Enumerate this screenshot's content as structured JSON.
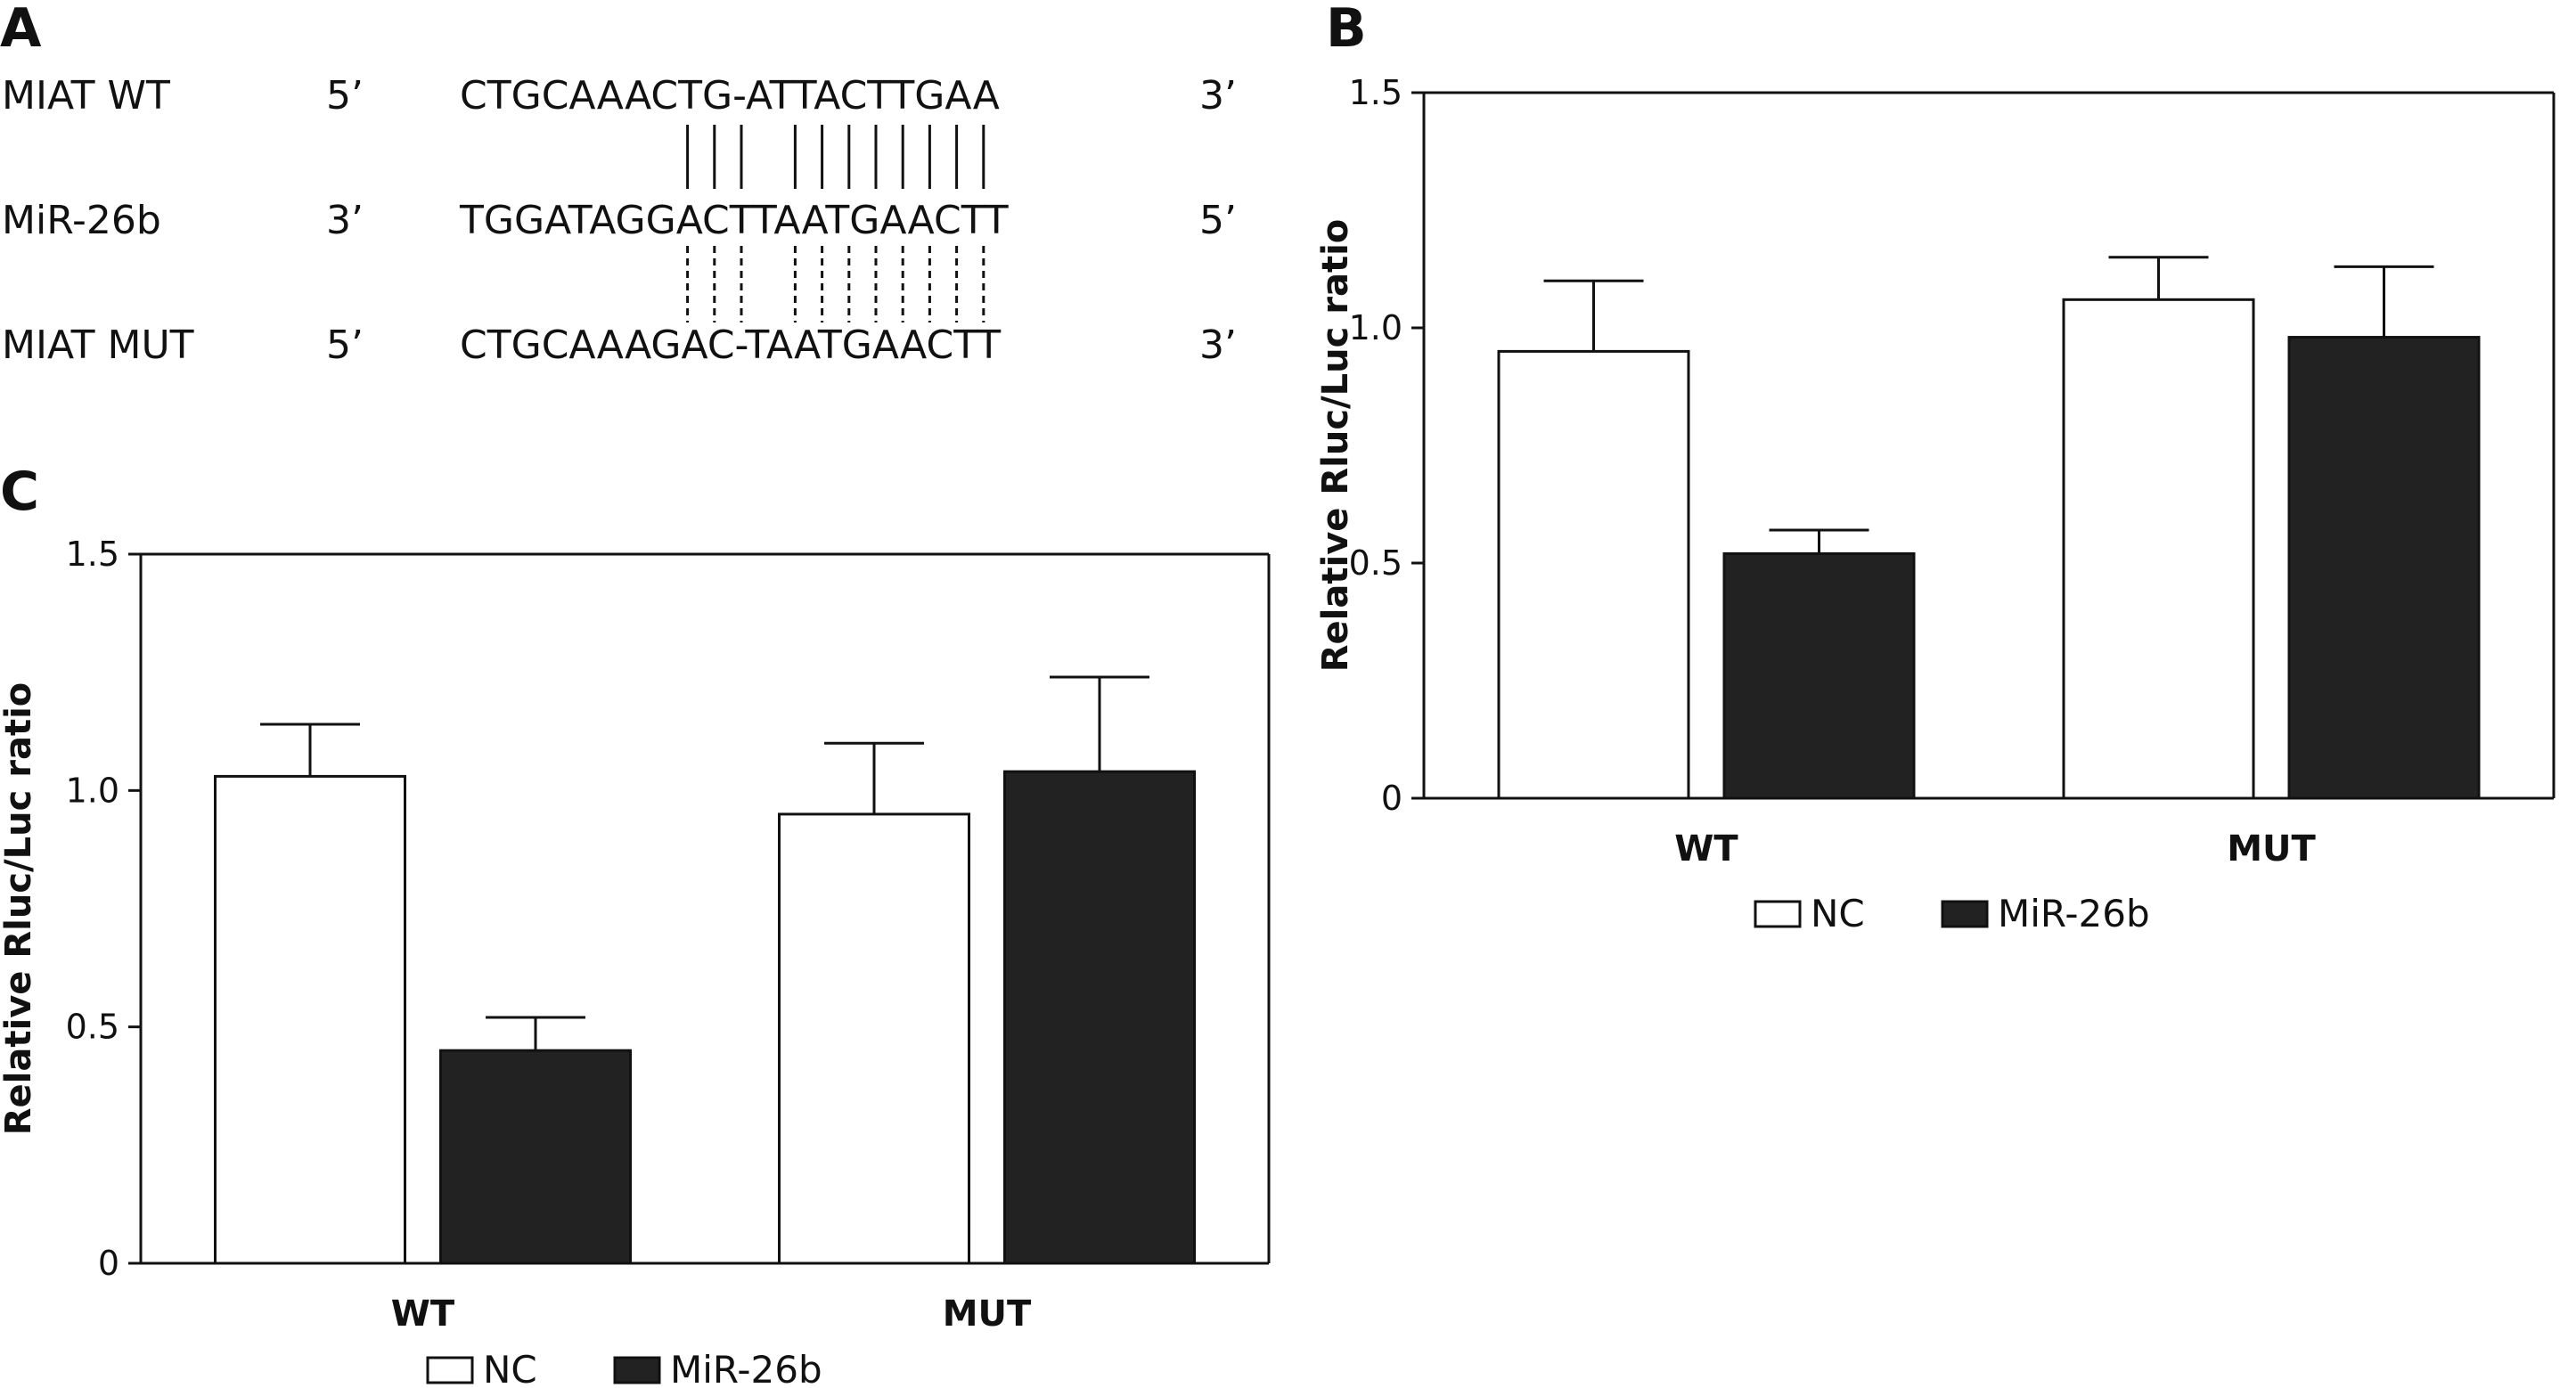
{
  "panels": {
    "a": {
      "letter": "A",
      "rows": [
        {
          "name": "MIAT WT",
          "left_end": "5’",
          "sequence": "CTGCAAACTG-ATTACTTGAA",
          "right_end": "3’"
        },
        {
          "name": "MiR-26b",
          "left_end": "3’",
          "sequence": "TGGATAGGACTTAATGAACTT",
          "right_end": "5’"
        },
        {
          "name": "MIAT MUT",
          "left_end": "5’",
          "sequence": "CTGCAAAGAC-TAATGAACTT",
          "right_end": "3’"
        }
      ],
      "pairing": {
        "upper": {
          "style": "solid",
          "columns": [
            8,
            9,
            10,
            12,
            13,
            14,
            15,
            16,
            17,
            18,
            19
          ]
        },
        "lower": {
          "style": "dashed",
          "columns": [
            8,
            9,
            10,
            12,
            13,
            14,
            15,
            16,
            17,
            18,
            19
          ]
        }
      }
    },
    "b": {
      "letter": "B"
    },
    "c": {
      "letter": "C"
    }
  },
  "chart_data": [
    {
      "panel": "B",
      "type": "bar",
      "title": "",
      "xlabel": "",
      "ylabel": "Relative Rluc/Luc ratio",
      "categories": [
        "WT",
        "MUT"
      ],
      "series": [
        {
          "name": "NC",
          "values": [
            0.95,
            1.06
          ],
          "errors": [
            0.15,
            0.09
          ],
          "fill": "#ffffff"
        },
        {
          "name": "MiR-26b",
          "values": [
            0.52,
            0.98
          ],
          "errors": [
            0.05,
            0.15
          ],
          "fill": "#222222"
        }
      ],
      "ylim": [
        0,
        1.5
      ],
      "yticks": [
        0,
        0.5,
        1.0,
        1.5
      ],
      "ytick_labels": [
        "0",
        "0.5",
        "1.0",
        "1.5"
      ],
      "grid": false,
      "legend_position": "bottom"
    },
    {
      "panel": "C",
      "type": "bar",
      "title": "",
      "xlabel": "",
      "ylabel": "Relative Rluc/Luc ratio",
      "categories": [
        "WT",
        "MUT"
      ],
      "series": [
        {
          "name": "NC",
          "values": [
            1.03,
            0.95
          ],
          "errors": [
            0.11,
            0.15
          ],
          "fill": "#ffffff"
        },
        {
          "name": "MiR-26b",
          "values": [
            0.45,
            1.04
          ],
          "errors": [
            0.07,
            0.2
          ],
          "fill": "#222222"
        }
      ],
      "ylim": [
        0,
        1.5
      ],
      "yticks": [
        0,
        0.5,
        1.0,
        1.5
      ],
      "ytick_labels": [
        "0",
        "0.5",
        "1.0",
        "1.5"
      ],
      "grid": false,
      "legend_position": "bottom"
    }
  ]
}
